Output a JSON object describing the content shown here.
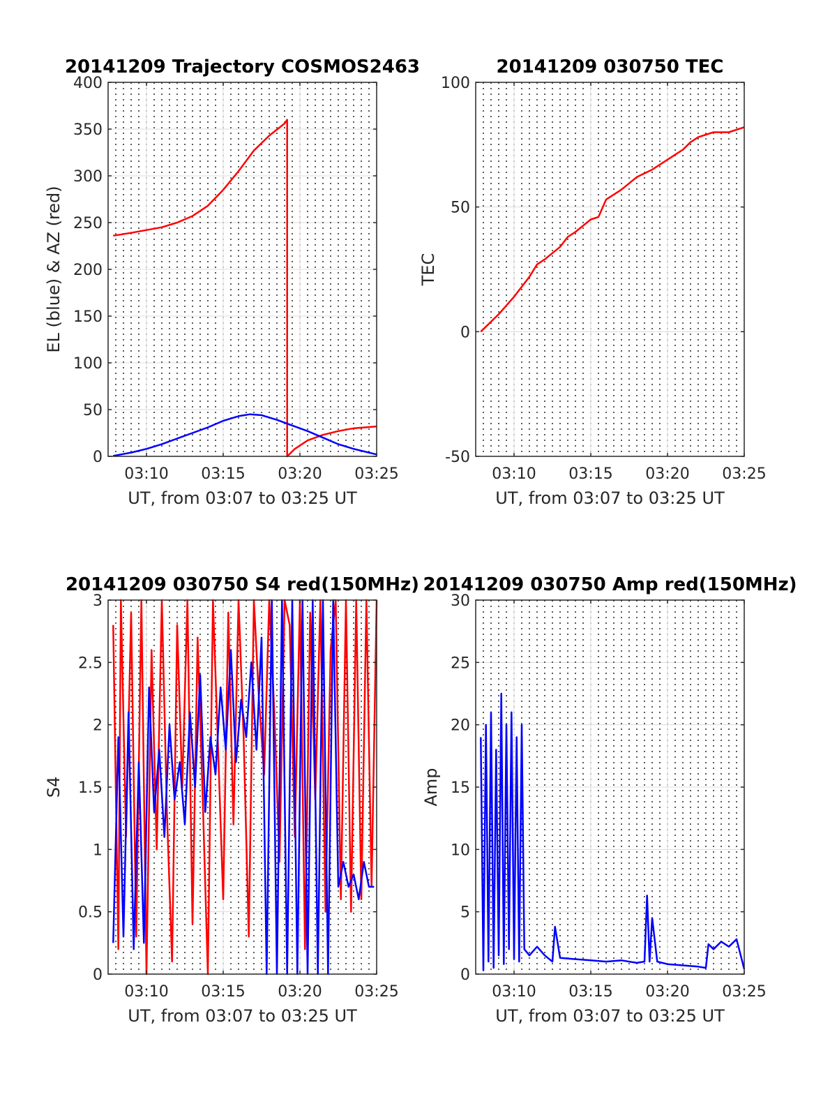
{
  "colors": {
    "az": "#ff0000",
    "el": "#0000ff",
    "grid": "#dcdcdc",
    "axis": "#262626",
    "background": "#ffffff"
  },
  "chart_data": [
    {
      "type": "line",
      "title": "20141209 Trajectory COSMOS2463",
      "xlabel": "UT, from 03:07 to 03:25 UT",
      "ylabel": "EL (blue) & AZ (red)",
      "xlim": [
        "03:07:30",
        "03:25:00"
      ],
      "ylim": [
        0,
        400
      ],
      "xticks": [
        "03:10",
        "03:15",
        "03:20",
        "03:25"
      ],
      "yticks": [
        "0",
        "50",
        "100",
        "150",
        "200",
        "250",
        "300",
        "350",
        "400"
      ],
      "grid": true,
      "series": [
        {
          "key": "AZ",
          "color": "#ff0000",
          "x": [
            "03:07:50",
            "03:09:00",
            "03:10:00",
            "03:11:00",
            "03:12:00",
            "03:13:00",
            "03:14:00",
            "03:15:00",
            "03:16:00",
            "03:17:00",
            "03:18:00",
            "03:19:00",
            "03:19:10",
            "03:19:10",
            "03:19:40",
            "03:20:30",
            "03:21:30",
            "03:22:30",
            "03:23:30",
            "03:25:00"
          ],
          "y": [
            236,
            239,
            242,
            245,
            250,
            257,
            268,
            285,
            305,
            327,
            343,
            356,
            360,
            0,
            8,
            17,
            23,
            27,
            30,
            32
          ]
        },
        {
          "key": "EL",
          "color": "#0000ff",
          "x": [
            "03:07:50",
            "03:09:00",
            "03:10:00",
            "03:11:00",
            "03:12:00",
            "03:13:00",
            "03:14:00",
            "03:15:00",
            "03:16:00",
            "03:16:45",
            "03:17:30",
            "03:18:30",
            "03:19:30",
            "03:20:30",
            "03:21:30",
            "03:22:30",
            "03:23:30",
            "03:25:00"
          ],
          "y": [
            0.5,
            4,
            8,
            13,
            19,
            25,
            31,
            38,
            43,
            45,
            44,
            39,
            33,
            27,
            20,
            13,
            8,
            2
          ]
        }
      ]
    },
    {
      "type": "line",
      "title": "20141209 030750 TEC",
      "xlabel": "UT, from 03:07 to 03:25 UT",
      "ylabel": "TEC",
      "xlim": [
        "03:07:30",
        "03:25:00"
      ],
      "ylim": [
        -50,
        100
      ],
      "xticks": [
        "03:10",
        "03:15",
        "03:20",
        "03:25"
      ],
      "yticks": [
        "-50",
        "0",
        "50",
        "100"
      ],
      "grid": true,
      "series": [
        {
          "color": "#ff0000",
          "x": [
            "03:07:50",
            "03:08:30",
            "03:09:00",
            "03:10:00",
            "03:11:00",
            "03:11:30",
            "03:12:00",
            "03:13:00",
            "03:13:30",
            "03:14:00",
            "03:15:00",
            "03:15:30",
            "03:16:00",
            "03:17:00",
            "03:18:00",
            "03:19:00",
            "03:20:00",
            "03:21:00",
            "03:21:30",
            "03:22:00",
            "03:22:30",
            "03:23:00",
            "03:24:00",
            "03:25:00"
          ],
          "y": [
            0,
            4,
            7,
            14,
            22,
            27,
            29,
            34,
            38,
            40,
            45,
            46,
            53,
            57,
            62,
            65,
            69,
            73,
            76,
            78,
            79,
            80,
            80,
            82
          ]
        }
      ]
    },
    {
      "type": "line",
      "title": "20141209 030750 S4 red(150MHz)",
      "xlabel": "UT, from 03:07 to 03:25 UT",
      "ylabel": "S4",
      "xlim": [
        "03:07:30",
        "03:25:00"
      ],
      "ylim": [
        0,
        3
      ],
      "xticks": [
        "03:10",
        "03:15",
        "03:20",
        "03:25"
      ],
      "yticks": [
        "0",
        "0.5",
        "1",
        "1.5",
        "2",
        "2.5",
        "3"
      ],
      "grid": true,
      "series": [
        {
          "key": "red",
          "color": "#ff0000",
          "x": [
            "03:07:50",
            "03:08:10",
            "03:08:20",
            "03:08:40",
            "03:09:00",
            "03:09:20",
            "03:09:40",
            "03:10:00",
            "03:10:20",
            "03:10:40",
            "03:11:00",
            "03:11:20",
            "03:11:40",
            "03:12:00",
            "03:12:20",
            "03:12:40",
            "03:13:00",
            "03:13:20",
            "03:13:40",
            "03:14:00",
            "03:14:20",
            "03:14:40",
            "03:15:00",
            "03:15:20",
            "03:15:40",
            "03:16:00",
            "03:16:20",
            "03:16:40",
            "03:17:00",
            "03:17:20",
            "03:17:40",
            "03:18:00",
            "03:18:20",
            "03:18:40",
            "03:19:00",
            "03:19:20",
            "03:19:40",
            "03:20:00",
            "03:20:20",
            "03:20:40",
            "03:21:00",
            "03:21:20",
            "03:21:40",
            "03:22:00",
            "03:22:20",
            "03:22:40",
            "03:23:00",
            "03:23:20",
            "03:23:40",
            "03:24:00",
            "03:24:20",
            "03:24:40",
            "03:25:00"
          ],
          "y": [
            2.8,
            0.2,
            3.0,
            1.1,
            2.9,
            0.3,
            3.0,
            0.0,
            2.6,
            1.0,
            3.0,
            1.3,
            0.1,
            2.8,
            1.5,
            3.0,
            0.4,
            2.7,
            1.4,
            0.0,
            3.0,
            1.8,
            0.6,
            2.9,
            1.2,
            3.0,
            1.9,
            0.3,
            3.0,
            2.2,
            1.6,
            3.0,
            2.1,
            0.9,
            3.0,
            2.8,
            1.1,
            3.0,
            0.2,
            2.9,
            1.4,
            3.0,
            0.5,
            2.6,
            3.0,
            0.6,
            3.0,
            0.5,
            3.0,
            0.6,
            3.0,
            0.7,
            3.0
          ]
        },
        {
          "key": "blue",
          "color": "#0000ff",
          "x": [
            "03:07:50",
            "03:08:10",
            "03:08:30",
            "03:08:50",
            "03:09:10",
            "03:09:30",
            "03:09:50",
            "03:10:10",
            "03:10:30",
            "03:10:50",
            "03:11:10",
            "03:11:30",
            "03:11:50",
            "03:12:10",
            "03:12:30",
            "03:12:50",
            "03:13:10",
            "03:13:30",
            "03:13:50",
            "03:14:10",
            "03:14:30",
            "03:14:50",
            "03:15:10",
            "03:15:30",
            "03:15:50",
            "03:16:10",
            "03:16:30",
            "03:16:50",
            "03:17:10",
            "03:17:30",
            "03:17:50",
            "03:18:10",
            "03:18:30",
            "03:18:50",
            "03:19:10",
            "03:19:30",
            "03:19:50",
            "03:20:10",
            "03:20:30",
            "03:20:50",
            "03:21:10",
            "03:21:30",
            "03:21:50",
            "03:22:10",
            "03:22:30",
            "03:22:50",
            "03:23:10",
            "03:23:30",
            "03:23:50",
            "03:24:10",
            "03:24:30",
            "03:24:50"
          ],
          "y": [
            0.25,
            1.9,
            0.3,
            2.1,
            0.2,
            1.7,
            0.25,
            2.3,
            1.3,
            1.8,
            1.1,
            2.0,
            1.4,
            1.7,
            1.2,
            2.1,
            1.5,
            2.4,
            1.3,
            1.9,
            1.6,
            2.3,
            1.8,
            2.6,
            1.7,
            2.2,
            1.9,
            2.5,
            1.8,
            2.7,
            0.0,
            3.0,
            0.0,
            3.0,
            0.0,
            3.0,
            0.0,
            3.0,
            0.0,
            3.0,
            0.0,
            3.0,
            0.0,
            3.0,
            0.7,
            0.9,
            0.7,
            0.8,
            0.6,
            0.9,
            0.7,
            0.7
          ]
        }
      ]
    },
    {
      "type": "line",
      "title": "20141209 030750 Amp red(150MHz)",
      "xlabel": "UT, from 03:07 to 03:25 UT",
      "ylabel": "Amp",
      "xlim": [
        "03:07:30",
        "03:25:00"
      ],
      "ylim": [
        0,
        30
      ],
      "xticks": [
        "03:10",
        "03:15",
        "03:20",
        "03:25"
      ],
      "yticks": [
        "0",
        "5",
        "10",
        "15",
        "20",
        "25",
        "30"
      ],
      "grid": true,
      "series": [
        {
          "color": "#0000ff",
          "x": [
            "03:07:50",
            "03:08:00",
            "03:08:10",
            "03:08:20",
            "03:08:30",
            "03:08:40",
            "03:08:50",
            "03:09:00",
            "03:09:10",
            "03:09:20",
            "03:09:30",
            "03:09:40",
            "03:09:50",
            "03:10:00",
            "03:10:10",
            "03:10:20",
            "03:10:30",
            "03:10:40",
            "03:11:00",
            "03:11:30",
            "03:12:00",
            "03:12:30",
            "03:12:40",
            "03:13:00",
            "03:14:00",
            "03:15:00",
            "03:16:00",
            "03:17:00",
            "03:18:00",
            "03:18:30",
            "03:18:40",
            "03:18:50",
            "03:19:00",
            "03:19:20",
            "03:20:00",
            "03:21:00",
            "03:22:00",
            "03:22:30",
            "03:22:40",
            "03:23:00",
            "03:23:30",
            "03:24:00",
            "03:24:30",
            "03:25:00"
          ],
          "y": [
            19,
            0.3,
            20,
            1.0,
            21,
            0.5,
            18,
            1.5,
            22.5,
            0.8,
            20,
            2.0,
            21,
            1.2,
            19,
            1.0,
            20,
            2.0,
            1.5,
            2.2,
            1.5,
            1.0,
            3.8,
            1.3,
            1.2,
            1.1,
            1.0,
            1.1,
            0.9,
            1.0,
            6.3,
            1.0,
            4.5,
            1.0,
            0.8,
            0.7,
            0.6,
            0.5,
            2.4,
            2.0,
            2.6,
            2.2,
            2.8,
            0.4
          ]
        }
      ]
    }
  ]
}
